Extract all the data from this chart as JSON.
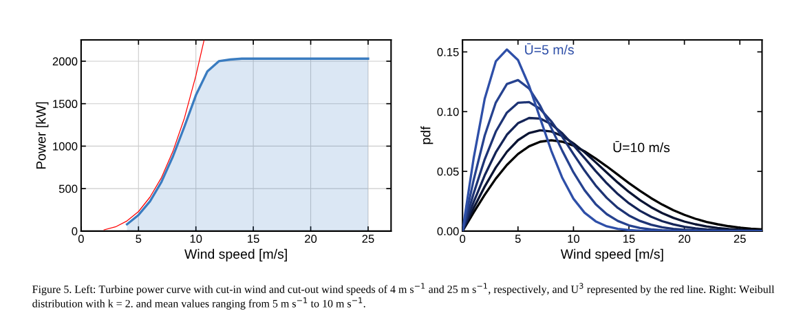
{
  "chart_data": [
    {
      "type": "area",
      "annotations": [
        "Figure 5. Left: Turbine power curve with cut-in wind and cut-out wind speeds of 4 m s$^{−1}$ and 25 m s$^{−1}$, respectively, and U$^{3}$ represented by the red line. Right: Weibull distribution with k = 2. and mean values ranging from 5 m s$^{−1}$ to 10 m s$^{−1}$."
      ],
      "xlabel": "Wind speed [m/s]",
      "ylabel": "Power [kW]",
      "xlim": [
        0,
        27
      ],
      "xticks": [
        0,
        5,
        10,
        15,
        20,
        25
      ],
      "ylim": [
        0,
        2250
      ],
      "yticks": [
        0,
        500,
        1000,
        1500,
        2000
      ],
      "grid": true,
      "series": [
        {
          "type": "area",
          "color": "#3a7cc0",
          "x": [
            4,
            5,
            6,
            7,
            8,
            9,
            10,
            11,
            12,
            13,
            14,
            25
          ],
          "values": [
            80,
            190,
            350,
            580,
            880,
            1230,
            1600,
            1880,
            2000,
            2020,
            2030,
            2030
          ]
        },
        {
          "type": "line",
          "color": "#ff0000",
          "x": [
            2,
            3,
            4,
            5,
            6,
            7,
            8,
            9,
            10,
            10.7
          ],
          "values": [
            15,
            50,
            120,
            230,
            400,
            630,
            940,
            1330,
            1830,
            2240
          ]
        }
      ]
    },
    {
      "type": "line",
      "xlabel": "Wind speed [m/s]",
      "ylabel": "pdf",
      "xlim": [
        0,
        27
      ],
      "xticks": [
        0,
        5,
        10,
        15,
        20,
        25
      ],
      "ylim": [
        0,
        0.16
      ],
      "yticks": [
        {
          "value": 0,
          "label": "0.00"
        },
        {
          "value": 0.05,
          "label": "0.05"
        },
        {
          "value": 0.1,
          "label": "0.10"
        },
        {
          "value": 0.15,
          "label": "0.15"
        }
      ],
      "grid": false,
      "x": [
        0,
        1,
        2,
        3,
        4,
        5,
        6,
        7,
        8,
        9,
        10,
        11,
        12,
        13,
        14,
        15,
        16,
        17,
        18,
        19,
        20,
        21,
        22,
        23,
        24,
        25,
        26,
        27
      ],
      "series": [
        {
          "color": "#2e4fa8",
          "values": [
            0,
            0.0609,
            0.1108,
            0.1421,
            0.152,
            0.1432,
            0.1217,
            0.0943,
            0.0673,
            0.0444,
            0.0271,
            0.0154,
            0.0082,
            0.004,
            0.0019,
            0.0008,
            0.0003,
            0.0001,
            0,
            0,
            0,
            0,
            0,
            0,
            0,
            0,
            0,
            0
          ]
        },
        {
          "color": "#26428f",
          "values": [
            0,
            0.0427,
            0.08,
            0.1076,
            0.1231,
            0.1264,
            0.1194,
            0.1049,
            0.0864,
            0.0671,
            0.0492,
            0.0343,
            0.0226,
            0.0142,
            0.0085,
            0.0048,
            0.0026,
            0.0014,
            0.0007,
            0.0003,
            0.0001,
            0,
            0,
            0,
            0,
            0,
            0,
            0
          ]
        },
        {
          "color": "#1d3374",
          "values": [
            0,
            0.0315,
            0.0601,
            0.0833,
            0.0992,
            0.1074,
            0.108,
            0.1023,
            0.0919,
            0.0788,
            0.0645,
            0.0507,
            0.0382,
            0.0278,
            0.0194,
            0.0131,
            0.0085,
            0.0053,
            0.0032,
            0.0019,
            0.0011,
            0.0006,
            0.0003,
            0.0002,
            0.0001,
            0,
            0,
            0
          ]
        },
        {
          "color": "#142457",
          "values": [
            0,
            0.0242,
            0.0467,
            0.0659,
            0.0807,
            0.0903,
            0.0947,
            0.0942,
            0.0895,
            0.0818,
            0.0719,
            0.0612,
            0.0503,
            0.0401,
            0.031,
            0.0233,
            0.017,
            0.012,
            0.0083,
            0.0056,
            0.0036,
            0.0023,
            0.0014,
            0.0009,
            0.0005,
            0.0003,
            0.0002,
            0.0001
          ]
        },
        {
          "color": "#0a1433",
          "values": [
            0,
            0.0192,
            0.0373,
            0.0533,
            0.0664,
            0.0761,
            0.0821,
            0.0844,
            0.0834,
            0.0796,
            0.0735,
            0.066,
            0.0576,
            0.049,
            0.0406,
            0.0328,
            0.0259,
            0.02,
            0.0151,
            0.0111,
            0.008,
            0.0057,
            0.0039,
            0.0026,
            0.0017,
            0.0011,
            0.0007,
            0.0004
          ]
        },
        {
          "color": "#000000",
          "values": [
            0,
            0.0156,
            0.0304,
            0.0439,
            0.0554,
            0.0645,
            0.071,
            0.0748,
            0.076,
            0.0748,
            0.0716,
            0.0668,
            0.0608,
            0.0542,
            0.0472,
            0.0402,
            0.0337,
            0.0276,
            0.0222,
            0.0175,
            0.0136,
            0.0103,
            0.0077,
            0.0057,
            0.0041,
            0.0029,
            0.002,
            0.0014
          ]
        }
      ],
      "annotations": [
        "Ū=5 m/s",
        "Ū=10 m/s"
      ]
    }
  ]
}
